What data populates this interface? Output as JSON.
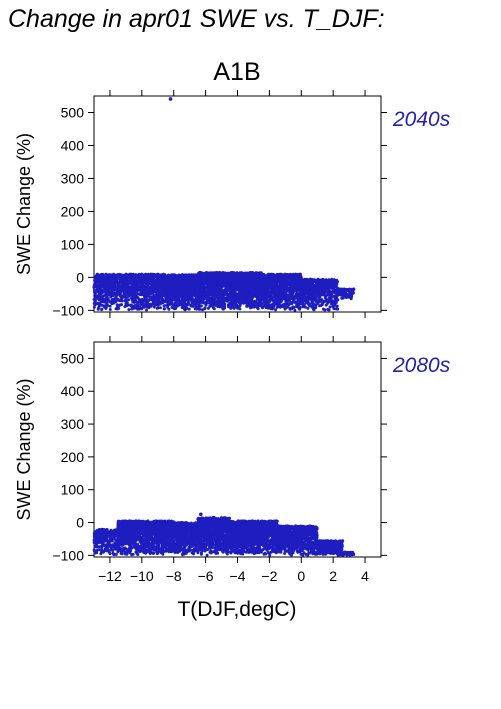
{
  "title": "Change in apr01 SWE vs. T_DJF:",
  "scenario": "A1B",
  "xlabel": "T(DJF,degC)",
  "colors": {
    "points": "#1e1ec0",
    "period_label": "#2222aa"
  },
  "chart_data": [
    {
      "type": "scatter",
      "period": "2040s",
      "xlabel": "T(DJF,degC)",
      "ylabel": "SWE Change (%)",
      "xlim": [
        -13,
        5
      ],
      "ylim": [
        -105,
        550
      ],
      "xticks": [
        -12,
        -10,
        -8,
        -6,
        -4,
        -2,
        0,
        2,
        4
      ],
      "yticks": [
        -100,
        0,
        100,
        200,
        300,
        400,
        500
      ],
      "outliers": [
        [
          -8.2,
          541
        ]
      ],
      "clusters": [
        {
          "x_range": [
            -13,
            -8.5
          ],
          "y_range": [
            -100,
            10
          ],
          "density": 0.7
        },
        {
          "x_range": [
            -8.5,
            -6.5
          ],
          "y_range": [
            -100,
            8
          ],
          "density": 1.0
        },
        {
          "x_range": [
            -6.5,
            -2.5
          ],
          "y_range": [
            -100,
            15
          ],
          "density": 1.0
        },
        {
          "x_range": [
            -2.5,
            0
          ],
          "y_range": [
            -100,
            10
          ],
          "density": 0.9
        },
        {
          "x_range": [
            0,
            2.3
          ],
          "y_range": [
            -100,
            -5
          ],
          "density": 0.6
        },
        {
          "x_range": [
            2.3,
            3.3
          ],
          "y_range": [
            -65,
            -35
          ],
          "density": 0.2
        }
      ]
    },
    {
      "type": "scatter",
      "period": "2080s",
      "xlabel": "T(DJF,degC)",
      "ylabel": "SWE Change (%)",
      "xlim": [
        -13,
        5
      ],
      "ylim": [
        -105,
        550
      ],
      "xticks": [
        -12,
        -10,
        -8,
        -6,
        -4,
        -2,
        0,
        2,
        4
      ],
      "yticks": [
        -100,
        0,
        100,
        200,
        300,
        400,
        500
      ],
      "outliers": [
        [
          -6.3,
          25
        ],
        [
          -5.5,
          15
        ]
      ],
      "clusters": [
        {
          "x_range": [
            -13,
            -11.5
          ],
          "y_range": [
            -100,
            -20
          ],
          "density": 0.4
        },
        {
          "x_range": [
            -11.5,
            -8
          ],
          "y_range": [
            -100,
            5
          ],
          "density": 0.9
        },
        {
          "x_range": [
            -8,
            -6.5
          ],
          "y_range": [
            -100,
            0
          ],
          "density": 0.9
        },
        {
          "x_range": [
            -6.5,
            -4.5
          ],
          "y_range": [
            -100,
            15
          ],
          "density": 1.0
        },
        {
          "x_range": [
            -4.5,
            -1.5
          ],
          "y_range": [
            -100,
            5
          ],
          "density": 1.0
        },
        {
          "x_range": [
            -1.5,
            1
          ],
          "y_range": [
            -100,
            -10
          ],
          "density": 0.8
        },
        {
          "x_range": [
            1,
            2.6
          ],
          "y_range": [
            -100,
            -55
          ],
          "density": 0.5
        },
        {
          "x_range": [
            2.6,
            3.3
          ],
          "y_range": [
            -100,
            -90
          ],
          "density": 0.15
        }
      ]
    }
  ]
}
